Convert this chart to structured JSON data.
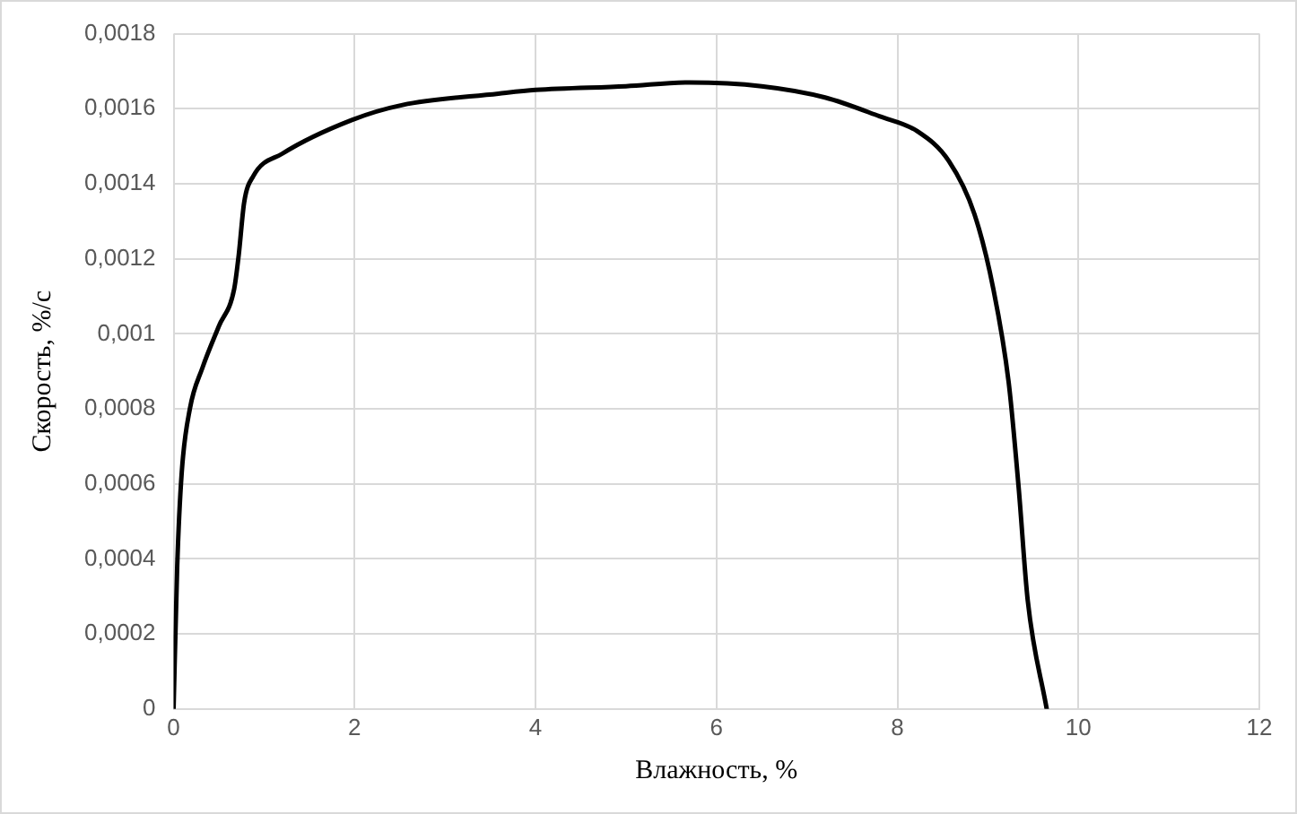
{
  "chart_data": {
    "type": "line",
    "xlabel": "Влажность, %",
    "ylabel": "Скорость, %/с",
    "xlim": [
      0,
      12
    ],
    "xticks": [
      0,
      2,
      4,
      6,
      8,
      10,
      12
    ],
    "ylim": [
      0,
      0.0018
    ],
    "yticks": [
      {
        "value": 0,
        "label": "0"
      },
      {
        "value": 0.0002,
        "label": "0,0002"
      },
      {
        "value": 0.0004,
        "label": "0,0004"
      },
      {
        "value": 0.0006,
        "label": "0,0006"
      },
      {
        "value": 0.0008,
        "label": "0,0008"
      },
      {
        "value": 0.001,
        "label": "0,001"
      },
      {
        "value": 0.0012,
        "label": "0,0012"
      },
      {
        "value": 0.0014,
        "label": "0,0014"
      },
      {
        "value": 0.0016,
        "label": "0,0016"
      },
      {
        "value": 0.0018,
        "label": "0,0018"
      }
    ],
    "grid": true,
    "legend": false,
    "marker": "none",
    "line_style": "solid",
    "series": [
      {
        "color": "#000000",
        "x": [
          0,
          0.04,
          0.09,
          0.18,
          0.32,
          0.5,
          0.67,
          0.72,
          0.78,
          0.88,
          1.2,
          1.97,
          2.53,
          3.59,
          4,
          5,
          5.7,
          6.5,
          7.2,
          7.8,
          8.22,
          8.57,
          8.85,
          9.06,
          9.23,
          9.34,
          9.44,
          9.65
        ],
        "values": [
          0,
          0.00038,
          0.00063,
          0.0008,
          0.00091,
          0.00102,
          0.00112,
          0.00121,
          0.00135,
          0.00142,
          0.00148,
          0.00157,
          0.00161,
          0.00164,
          0.00165,
          0.00166,
          0.00167,
          0.00166,
          0.00163,
          0.00158,
          0.00154,
          0.00146,
          0.00132,
          0.00112,
          0.00087,
          0.00059,
          0.00029,
          0
        ]
      }
    ]
  }
}
